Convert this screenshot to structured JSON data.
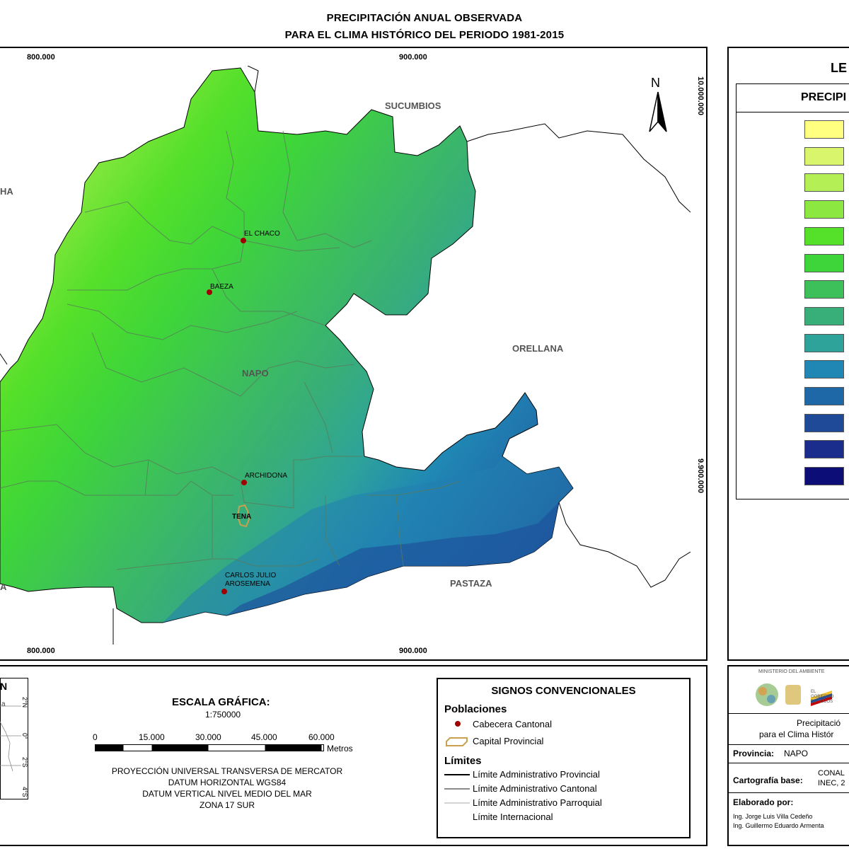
{
  "title": {
    "line1": "PRECIPITACIÓN ANUAL OBSERVADA",
    "line2": "PARA EL CLIMA HISTÓRICO DEL PERIODO 1981-2015"
  },
  "map": {
    "coords_top": [
      "800.000",
      "900.000"
    ],
    "coords_bottom": [
      "800.000",
      "900.000"
    ],
    "coords_right": [
      "10.000.000",
      "9.900.000"
    ],
    "north": "N",
    "region_labels": {
      "sucumbios": "SUCUMBIOS",
      "orellana": "ORELLANA",
      "napo": "NAPO",
      "pastaza": "PASTAZA",
      "left_top": "HA",
      "left_bottom": "A"
    },
    "towns": {
      "el_chaco": "EL CHACO",
      "baeza": "BAEZA",
      "archidona": "ARCHIDONA",
      "tena": "TENA",
      "carlos_line1": "CARLOS JULIO",
      "carlos_line2": "AROSEMENA"
    }
  },
  "legend": {
    "title": "LE",
    "subtitle": "PRECIPI",
    "swatches": [
      "#ffff80",
      "#d9f56b",
      "#b4f055",
      "#8ce841",
      "#55e02a",
      "#3ed53a",
      "#3dc05a",
      "#38ae78",
      "#2ea39a",
      "#2087b4",
      "#1f68a8",
      "#1f4a98",
      "#1b2d8c",
      "#0d0d78"
    ]
  },
  "inset": {
    "north": "N",
    "lat_labels": [
      "2°N",
      "0°",
      "2°S",
      "4°S"
    ],
    "side_text": "a"
  },
  "scale": {
    "title": "ESCALA GRÁFICA:",
    "ratio": "1:750000",
    "ticks": [
      "0",
      "15.000",
      "30.000",
      "45.000",
      "60.000"
    ],
    "units": "Metros",
    "proj1": "PROYECCIÓN UNIVERSAL TRANSVERSA DE MERCATOR",
    "proj2": "DATUM HORIZONTAL WGS84",
    "proj3": "DATUM VERTICAL NIVEL MEDIO DEL MAR",
    "proj4": "ZONA 17 SUR"
  },
  "signs": {
    "title": "SIGNOS CONVENCIONALES",
    "poblaciones": "Poblaciones",
    "cabecera": "Cabecera Cantonal",
    "capital": "Capital Provincial",
    "limites": "Límites",
    "lim_prov": "Límite Administrativo Provincial",
    "lim_cant": "Límite Administrativo Cantonal",
    "lim_parr": "Límite Administrativo Parroquial",
    "lim_int": "Límite Internacional"
  },
  "info": {
    "ministry": "MINISTERIO DEL AMBIENTE",
    "gob1": "EL",
    "gob2": "GOBIERNO",
    "gob3": "DE TODOS",
    "desc1": "Precipitació",
    "desc2": "para el Clima Histór",
    "provincia_label": "Provincia:",
    "provincia_value": "NAPO",
    "carto_label": "Cartografía base:",
    "carto_v1": "CONAL",
    "carto_v2": "INEC, 2",
    "elab_label": "Elaborado por:",
    "elab1": "Ing. Jorge Luis Villa Cedeño",
    "elab2": "Ing. Guillermo Eduardo Armenta"
  }
}
